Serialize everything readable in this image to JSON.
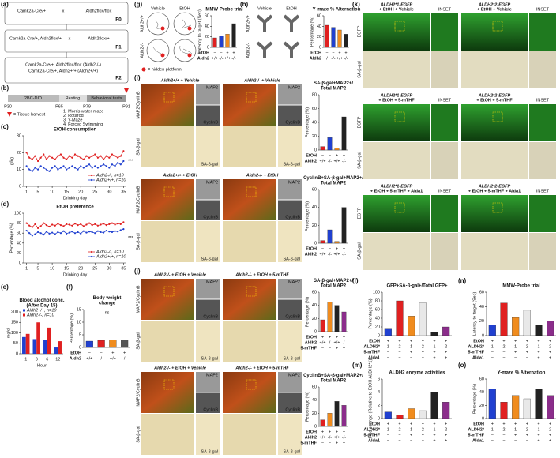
{
  "panels": {
    "labels": [
      "(a)",
      "(b)",
      "(c)",
      "(d)",
      "(e)",
      "(f)",
      "(g)",
      "(h)",
      "(i)",
      "(j)",
      "(k)",
      "(l)",
      "(m)",
      "(n)",
      "(o)"
    ],
    "a": {
      "row1": [
        "Camk2a-Cre/+",
        "x",
        "Aldh2flox/flox"
      ],
      "row2": [
        "Camk2a-Cre/+, Aldh2flox/+",
        "x",
        "Aldh2flox/+"
      ],
      "row3": [
        "Camk2a-Cre/+, Aldh2flox/flox (Aldh2-/-)",
        "Camk2a-Cre/+, Aldh2+/+ (Aldh2+/+)"
      ],
      "generations": [
        "F0",
        "F1",
        "F2"
      ]
    },
    "b": {
      "phases": [
        "2BC-DID",
        "Resting",
        "Behavioral tests"
      ],
      "ages": [
        "P30",
        "P65",
        "P79",
        "P91"
      ],
      "harvest": "= Tissue harvest",
      "tests": [
        "1. Morris water maze",
        "2. Rotarod",
        "3. Y-Maze",
        "4. Forced Swimming"
      ]
    },
    "g": {
      "conditions": [
        "Vehicle",
        "EtOH"
      ],
      "genotypes": [
        "Aldh2+/+",
        "Aldh2-/-"
      ],
      "legend": "= hidden platform"
    },
    "h": {
      "conditions": [
        "Vehicle",
        "EtOH"
      ],
      "genotypes": [
        "Aldh2+/+",
        "Aldh2-/-"
      ]
    },
    "i": {
      "headers": [
        "Aldh2+/+ + Vehicle",
        "Aldh2-/- + Vehicle",
        "Aldh2+/+ + EtOH",
        "Aldh2-/- + EtOH"
      ],
      "rows": [
        "MAP2/CyclinB",
        "SA-β-gal"
      ],
      "insets": [
        "MAP2",
        "CyclinB",
        "SA-β-gal"
      ]
    },
    "j": {
      "headers": [
        "Aldh2-/- + EtOH + Vehicle",
        "Aldh2-/- + EtOH + 5-mTHF",
        "Aldh2-/- + EtOH + Vehicle",
        "Aldh2-/- + EtOH + 5-mTHF"
      ],
      "rows": [
        "MAP2/CyclinB",
        "SA-β-gal"
      ],
      "insets": [
        "MAP2",
        "CyclinB",
        "SA-β-gal"
      ]
    },
    "k": {
      "headers": [
        [
          "ALDH2*1-EGFP",
          "+ EtOH + Vehicle"
        ],
        [
          "ALDH2*2-EGFP",
          "+ EtOH + Vehicle"
        ],
        [
          "ALDH2*1-EGFP",
          "+ EtOH + 5-mTHF"
        ],
        [
          "ALDH2*2-EGFP",
          "+ EtOH + 5-mTHF"
        ],
        [
          "ALDH2*1-EGFP",
          "+ EtOH + 5-mTHF + Alda1"
        ],
        [
          "ALDH2*2-EGFP",
          "+ EtOH + 5-mTHF + Alda1"
        ]
      ],
      "inset": "INSET",
      "rows": [
        "EGFP",
        "SA-β-gal"
      ]
    }
  },
  "chart_data": [
    {
      "type": "line",
      "title": [
        "EtOH consumption"
      ],
      "ylabel": "g/kg",
      "xlabel": "Drinking day",
      "x": [
        1,
        2,
        3,
        4,
        5,
        6,
        7,
        8,
        9,
        10,
        11,
        12,
        13,
        14,
        15,
        16,
        17,
        18,
        19,
        20,
        21,
        22,
        23,
        24,
        25,
        26,
        27,
        28,
        29,
        30,
        31,
        32,
        33,
        34,
        35
      ],
      "xlim": [
        0,
        36
      ],
      "xticks": [
        1,
        5,
        10,
        15,
        20,
        25,
        30,
        35
      ],
      "ylim": [
        0,
        30
      ],
      "yticks": [
        0,
        10,
        20,
        30
      ],
      "legend": "lower right",
      "annotation": "***",
      "series": [
        {
          "name": "Aldh2-/-, n=10",
          "color": "#e02020",
          "values": [
            20,
            17,
            16,
            18,
            15,
            17,
            19,
            16,
            18,
            17,
            16,
            18,
            19,
            17,
            16,
            18,
            17,
            19,
            18,
            17,
            16,
            18,
            17,
            18,
            19,
            17,
            18,
            16,
            18,
            17,
            19,
            18,
            17,
            18,
            21
          ]
        },
        {
          "name": "Aldh2+/+, n=10",
          "color": "#2040d0",
          "values": [
            12,
            10,
            9,
            11,
            10,
            12,
            11,
            10,
            9,
            11,
            12,
            10,
            11,
            12,
            10,
            11,
            12,
            11,
            10,
            12,
            11,
            12,
            13,
            11,
            12,
            11,
            12,
            13,
            12,
            11,
            13,
            12,
            14,
            13,
            15
          ]
        }
      ]
    },
    {
      "type": "line",
      "title": [
        "EtOH preference"
      ],
      "ylabel": "Percentage (%)",
      "xlabel": "Drinking day",
      "x": [
        1,
        2,
        3,
        4,
        5,
        6,
        7,
        8,
        9,
        10,
        11,
        12,
        13,
        14,
        15,
        16,
        17,
        18,
        19,
        20,
        21,
        22,
        23,
        24,
        25,
        26,
        27,
        28,
        29,
        30,
        31,
        32,
        33,
        34,
        35
      ],
      "xlim": [
        0,
        36
      ],
      "xticks": [
        1,
        5,
        10,
        15,
        20,
        25,
        30,
        35
      ],
      "ylim": [
        0,
        100
      ],
      "yticks": [
        0,
        20,
        40,
        60,
        80,
        100
      ],
      "legend": "lower right",
      "annotation": "***",
      "series": [
        {
          "name": "Aldh2-/-, n=10",
          "color": "#e02020",
          "values": [
            80,
            75,
            72,
            78,
            70,
            74,
            80,
            76,
            73,
            77,
            75,
            79,
            76,
            74,
            78,
            77,
            75,
            79,
            76,
            78,
            74,
            77,
            80,
            76,
            78,
            75,
            77,
            79,
            76,
            78,
            80,
            77,
            79,
            78,
            82
          ]
        },
        {
          "name": "Aldh2+/+, n=10",
          "color": "#2040d0",
          "values": [
            65,
            60,
            55,
            58,
            62,
            60,
            57,
            63,
            59,
            61,
            58,
            62,
            60,
            64,
            59,
            61,
            63,
            60,
            62,
            59,
            64,
            61,
            63,
            62,
            60,
            64,
            62,
            61,
            65,
            63,
            62,
            64,
            63,
            66,
            68
          ]
        }
      ]
    },
    {
      "type": "grouped_bar",
      "title": [
        "Blood alcohol conc.",
        "(After Day 15)"
      ],
      "ylabel": "mg/dl",
      "xlabel": "Hour",
      "categories": [
        "1",
        "3",
        "6",
        "12"
      ],
      "ylim": [
        0,
        200
      ],
      "yticks": [
        0,
        50,
        100,
        150,
        200
      ],
      "legend": "upper left",
      "series": [
        {
          "name": "Aldh2+/+, n=10",
          "color": "#2040d0",
          "values": [
            80,
            70,
            65,
            30
          ]
        },
        {
          "name": "Aldh2-/-, n=10",
          "color": "#e02020",
          "values": [
            95,
            150,
            125,
            60
          ]
        }
      ]
    },
    {
      "type": "bar",
      "title": [
        "Body weight",
        "change"
      ],
      "ylabel": "Percentage (%)",
      "ylim": [
        0,
        15
      ],
      "yticks": [
        0,
        5,
        10,
        15
      ],
      "annotation": "ns",
      "values": [
        2.5,
        2.8,
        3,
        3
      ],
      "colors": [
        "#2040d0",
        "#e02020",
        "#f08c1e",
        "#555555"
      ],
      "condition_rows": [
        {
          "label": "EtOH",
          "cells": [
            "−",
            "−",
            "+",
            "+"
          ]
        },
        {
          "label": "Aldh2",
          "cells": [
            "+/+",
            "-/-",
            "+/+",
            "-/-"
          ]
        }
      ]
    },
    {
      "type": "bar",
      "title": [
        "MMW-Probe trial"
      ],
      "ylabel": "Latency to target (Sec)",
      "ylim": [
        0,
        60
      ],
      "yticks": [
        0,
        20,
        40,
        60
      ],
      "values": [
        18,
        22,
        25,
        45
      ],
      "colors": [
        "#e02020",
        "#2040d0",
        "#f08c1e",
        "#222222"
      ],
      "condition_rows": [
        {
          "label": "EtOH",
          "cells": [
            "−",
            "−",
            "+",
            "+"
          ]
        },
        {
          "label": "Aldh2",
          "cells": [
            "+/+",
            "-/-",
            "+/+",
            "-/-"
          ]
        }
      ]
    },
    {
      "type": "bar",
      "title": [
        "Y-maze % Alternation"
      ],
      "ylabel": "Percentage (%)",
      "ylim": [
        0,
        60
      ],
      "yticks": [
        0,
        20,
        40,
        60
      ],
      "values": [
        42,
        38,
        33,
        25
      ],
      "colors": [
        "#e02020",
        "#2040d0",
        "#f08c1e",
        "#222222"
      ],
      "condition_rows": [
        {
          "label": "EtOH",
          "cells": [
            "−",
            "−",
            "+",
            "+"
          ]
        },
        {
          "label": "Aldh2",
          "cells": [
            "+/+",
            "-/-",
            "+/+",
            "-/-"
          ]
        }
      ]
    },
    {
      "type": "bar",
      "title": [
        "SA-β-gal+MAP2+/",
        "Total MAP2"
      ],
      "ylabel": "Percentage (%)",
      "ylim": [
        0,
        80
      ],
      "yticks": [
        0,
        20,
        40,
        60,
        80
      ],
      "values": [
        5,
        18,
        3,
        48
      ],
      "colors": [
        "#e02020",
        "#2040d0",
        "#f08c1e",
        "#222222"
      ],
      "condition_rows": [
        {
          "label": "EtOH",
          "cells": [
            "−",
            "−",
            "+",
            "+"
          ]
        },
        {
          "label": "Aldh2",
          "cells": [
            "+/+",
            "-/-",
            "+/+",
            "-/-"
          ]
        }
      ]
    },
    {
      "type": "bar",
      "title": [
        "CyclinB+SA-β-gal+MAP2+/",
        "Total MAP2"
      ],
      "ylabel": "Percentage (%)",
      "ylim": [
        0,
        60
      ],
      "yticks": [
        0,
        20,
        40,
        60
      ],
      "values": [
        3,
        15,
        2,
        40
      ],
      "colors": [
        "#e02020",
        "#2040d0",
        "#f08c1e",
        "#222222"
      ],
      "condition_rows": [
        {
          "label": "EtOH",
          "cells": [
            "−",
            "−",
            "+",
            "+"
          ]
        },
        {
          "label": "Aldh2",
          "cells": [
            "+/+",
            "-/-",
            "+/+",
            "-/-"
          ]
        }
      ]
    },
    {
      "type": "bar",
      "title": [
        "SA-β-gal+MAP2+/",
        "Total MAP2"
      ],
      "ylabel": "Percentage (%)",
      "ylim": [
        0,
        60
      ],
      "yticks": [
        0,
        20,
        40,
        60
      ],
      "values": [
        18,
        45,
        40,
        30
      ],
      "colors": [
        "#e02020",
        "#f08c1e",
        "#222222",
        "#8b2d8b"
      ],
      "condition_rows": [
        {
          "label": "EtOH",
          "cells": [
            "+",
            "+",
            "+",
            "+"
          ]
        },
        {
          "label": "Aldh2",
          "cells": [
            "+/+",
            "-/-",
            "+/+",
            "-/-"
          ]
        },
        {
          "label": "5-mTHF",
          "cells": [
            "−",
            "−",
            "+",
            "+"
          ]
        }
      ]
    },
    {
      "type": "bar",
      "title": [
        "CyclinB+SA-β-gal+MAP2+/",
        "Total MAP2"
      ],
      "ylabel": "Percentage (%)",
      "ylim": [
        0,
        60
      ],
      "yticks": [
        0,
        20,
        40,
        60
      ],
      "values": [
        10,
        20,
        38,
        32
      ],
      "colors": [
        "#e02020",
        "#f08c1e",
        "#222222",
        "#8b2d8b"
      ],
      "condition_rows": [
        {
          "label": "EtOH",
          "cells": [
            "+",
            "+",
            "+",
            "+"
          ]
        },
        {
          "label": "Aldh2",
          "cells": [
            "+/+",
            "-/-",
            "+/+",
            "-/-"
          ]
        },
        {
          "label": "5-mTHF",
          "cells": [
            "−",
            "−",
            "+",
            "+"
          ]
        }
      ]
    },
    {
      "type": "bar",
      "title": [
        "GFP+SA-β-gal+/Total GFP+"
      ],
      "ylabel": "Percentage (%)",
      "ylim": [
        0,
        100
      ],
      "yticks": [
        0,
        20,
        40,
        60,
        80,
        100
      ],
      "values": [
        15,
        80,
        45,
        75,
        8,
        20
      ],
      "colors": [
        "#2040d0",
        "#e02020",
        "#f08c1e",
        "#e8e8e8",
        "#222222",
        "#8b2d8b"
      ],
      "condition_rows": [
        {
          "label": "EtOH",
          "cells": [
            "+",
            "+",
            "+",
            "+",
            "+",
            "+"
          ]
        },
        {
          "label": "ALDH2*",
          "cells": [
            "1",
            "2",
            "1",
            "2",
            "1",
            "2"
          ]
        },
        {
          "label": "5-mTHF",
          "cells": [
            "−",
            "−",
            "+",
            "+",
            "+",
            "+"
          ]
        },
        {
          "label": "Alda1",
          "cells": [
            "−",
            "−",
            "−",
            "−",
            "+",
            "+"
          ]
        }
      ]
    },
    {
      "type": "bar",
      "title": [
        "MMW-Probe trial"
      ],
      "ylabel": "Latency to target (Sec)",
      "ylim": [
        0,
        60
      ],
      "yticks": [
        0,
        20,
        40,
        60
      ],
      "values": [
        15,
        45,
        25,
        35,
        15,
        20
      ],
      "colors": [
        "#2040d0",
        "#e02020",
        "#f08c1e",
        "#e8e8e8",
        "#222222",
        "#8b2d8b"
      ],
      "condition_rows": [
        {
          "label": "EtOH",
          "cells": [
            "+",
            "+",
            "+",
            "+",
            "+",
            "+"
          ]
        },
        {
          "label": "ALDH2*",
          "cells": [
            "1",
            "2",
            "1",
            "2",
            "1",
            "2"
          ]
        },
        {
          "label": "5-mTHF",
          "cells": [
            "−",
            "−",
            "+",
            "+",
            "+",
            "+"
          ]
        },
        {
          "label": "Alda1",
          "cells": [
            "−",
            "−",
            "−",
            "−",
            "+",
            "+"
          ]
        }
      ]
    },
    {
      "type": "bar",
      "title": [
        "ALDH2 enzyme activities"
      ],
      "ylabel": "Fold change (Relative to EtOH ALDH2*1)",
      "ylim": [
        0,
        6
      ],
      "yticks": [
        0,
        2,
        4,
        6
      ],
      "values": [
        1,
        0.5,
        1.5,
        1.2,
        4,
        2.5
      ],
      "colors": [
        "#2040d0",
        "#e02020",
        "#f08c1e",
        "#e8e8e8",
        "#222222",
        "#8b2d8b"
      ],
      "condition_rows": [
        {
          "label": "EtOH",
          "cells": [
            "+",
            "+",
            "+",
            "+",
            "+",
            "+"
          ]
        },
        {
          "label": "ALDH2*",
          "cells": [
            "1",
            "2",
            "1",
            "2",
            "1",
            "2"
          ]
        },
        {
          "label": "5-mTHF",
          "cells": [
            "−",
            "−",
            "+",
            "+",
            "+",
            "+"
          ]
        },
        {
          "label": "Alda1",
          "cells": [
            "−",
            "−",
            "−",
            "−",
            "+",
            "+"
          ]
        }
      ]
    },
    {
      "type": "bar",
      "title": [
        "Y-maze % Alternation"
      ],
      "ylabel": "Percentage (%)",
      "ylim": [
        0,
        60
      ],
      "yticks": [
        0,
        20,
        40,
        60
      ],
      "values": [
        45,
        25,
        35,
        30,
        45,
        35
      ],
      "colors": [
        "#2040d0",
        "#e02020",
        "#f08c1e",
        "#e8e8e8",
        "#222222",
        "#8b2d8b"
      ],
      "condition_rows": [
        {
          "label": "EtOH",
          "cells": [
            "+",
            "+",
            "+",
            "+",
            "+",
            "+"
          ]
        },
        {
          "label": "ALDH2*",
          "cells": [
            "1",
            "2",
            "1",
            "2",
            "1",
            "2"
          ]
        },
        {
          "label": "5-mTHF",
          "cells": [
            "−",
            "−",
            "+",
            "+",
            "+",
            "+"
          ]
        },
        {
          "label": "Alda1",
          "cells": [
            "−",
            "−",
            "−",
            "−",
            "+",
            "+"
          ]
        }
      ]
    }
  ]
}
